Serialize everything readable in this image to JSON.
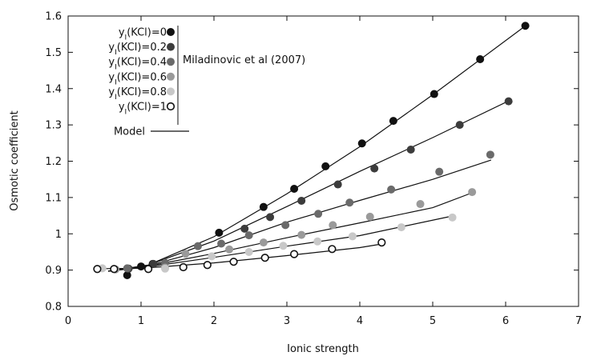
{
  "chart_data": {
    "type": "scatter",
    "xlabel": "Ionic strength",
    "ylabel": "Osmotic coefficient",
    "xlim": [
      0,
      7
    ],
    "ylim": [
      0.8,
      1.6
    ],
    "x_ticks": [
      "0",
      "1",
      "2",
      "3",
      "4",
      "5",
      "6",
      "7"
    ],
    "y_ticks": [
      "0.8",
      "0.9",
      "1",
      "1.1",
      "1.2",
      "1.3",
      "1.4",
      "1.5",
      "1.6"
    ],
    "grid": false,
    "legend_position": "top-left",
    "data_source_label": "Miladinovic et al (2007)",
    "series": [
      {
        "name": "y_I(KCl)=0",
        "color": "#111111",
        "marker": "filled-circle",
        "points": [
          [
            0.81,
            0.886
          ],
          [
            1.0,
            0.91
          ],
          [
            1.16,
            0.917
          ],
          [
            2.07,
            1.003
          ],
          [
            2.68,
            1.074
          ],
          [
            3.1,
            1.124
          ],
          [
            3.53,
            1.186
          ],
          [
            4.03,
            1.249
          ],
          [
            4.46,
            1.311
          ],
          [
            5.02,
            1.385
          ],
          [
            5.65,
            1.481
          ],
          [
            6.27,
            1.573
          ]
        ],
        "model": [
          [
            0.55,
            0.897
          ],
          [
            1.1,
            0.914
          ],
          [
            2.0,
            0.992
          ],
          [
            3.0,
            1.11
          ],
          [
            4.0,
            1.24
          ],
          [
            5.0,
            1.383
          ],
          [
            6.3,
            1.577
          ]
        ]
      },
      {
        "name": "y_I(KCl)=0.2",
        "color": "#3c3c3c",
        "marker": "filled-circle",
        "points": [
          [
            0.83,
            0.904
          ],
          [
            1.17,
            0.917
          ],
          [
            2.42,
            1.014
          ],
          [
            2.77,
            1.046
          ],
          [
            3.2,
            1.091
          ],
          [
            3.7,
            1.136
          ],
          [
            4.2,
            1.18
          ],
          [
            4.7,
            1.232
          ],
          [
            5.37,
            1.3
          ],
          [
            6.04,
            1.365
          ]
        ],
        "model": [
          [
            0.55,
            0.897
          ],
          [
            1.1,
            0.914
          ],
          [
            2.0,
            0.98
          ],
          [
            3.0,
            1.075
          ],
          [
            4.0,
            1.172
          ],
          [
            5.0,
            1.265
          ],
          [
            6.04,
            1.366
          ]
        ]
      },
      {
        "name": "y_I(KCl)=0.4",
        "color": "#6a6a6a",
        "marker": "filled-circle",
        "points": [
          [
            0.81,
            0.905
          ],
          [
            1.33,
            0.92
          ],
          [
            1.78,
            0.966
          ],
          [
            2.1,
            0.973
          ],
          [
            2.48,
            0.996
          ],
          [
            2.98,
            1.024
          ],
          [
            3.43,
            1.055
          ],
          [
            3.86,
            1.086
          ],
          [
            4.43,
            1.122
          ],
          [
            5.09,
            1.171
          ],
          [
            5.79,
            1.218
          ]
        ],
        "model": [
          [
            0.55,
            0.897
          ],
          [
            1.1,
            0.912
          ],
          [
            2.0,
            0.962
          ],
          [
            3.0,
            1.032
          ],
          [
            4.0,
            1.092
          ],
          [
            5.0,
            1.15
          ],
          [
            5.8,
            1.203
          ]
        ]
      },
      {
        "name": "y_I(KCl)=0.6",
        "color": "#9a9a9a",
        "marker": "filled-circle",
        "points": [
          [
            0.65,
            0.902
          ],
          [
            1.33,
            0.907
          ],
          [
            1.61,
            0.945
          ],
          [
            2.21,
            0.957
          ],
          [
            2.68,
            0.976
          ],
          [
            3.2,
            0.997
          ],
          [
            3.63,
            1.024
          ],
          [
            4.14,
            1.047
          ],
          [
            4.83,
            1.082
          ],
          [
            5.54,
            1.115
          ]
        ],
        "model": [
          [
            0.55,
            0.897
          ],
          [
            1.1,
            0.911
          ],
          [
            2.0,
            0.946
          ],
          [
            3.0,
            0.989
          ],
          [
            4.0,
            1.03
          ],
          [
            5.0,
            1.072
          ],
          [
            5.54,
            1.113
          ]
        ]
      },
      {
        "name": "y_I(KCl)=0.8",
        "color": "#c8c8c8",
        "marker": "filled-circle",
        "points": [
          [
            0.47,
            0.905
          ],
          [
            1.33,
            0.904
          ],
          [
            1.97,
            0.938
          ],
          [
            2.48,
            0.95
          ],
          [
            2.95,
            0.967
          ],
          [
            3.42,
            0.979
          ],
          [
            3.9,
            0.993
          ],
          [
            4.57,
            1.018
          ],
          [
            5.27,
            1.045
          ]
        ],
        "model": [
          [
            0.55,
            0.897
          ],
          [
            1.1,
            0.909
          ],
          [
            2.0,
            0.935
          ],
          [
            3.0,
            0.966
          ],
          [
            4.0,
            0.995
          ],
          [
            5.27,
            1.049
          ]
        ]
      },
      {
        "name": "y_I(KCl)=1",
        "color": "#111111",
        "marker": "open-circle",
        "points": [
          [
            0.4,
            0.903
          ],
          [
            0.63,
            0.903
          ],
          [
            1.1,
            0.903
          ],
          [
            1.58,
            0.908
          ],
          [
            1.91,
            0.914
          ],
          [
            2.27,
            0.923
          ],
          [
            2.7,
            0.934
          ],
          [
            3.1,
            0.944
          ],
          [
            3.62,
            0.958
          ],
          [
            4.3,
            0.976
          ]
        ],
        "model": [
          [
            0.45,
            0.904
          ],
          [
            1.0,
            0.905
          ],
          [
            2.0,
            0.92
          ],
          [
            3.0,
            0.94
          ],
          [
            4.0,
            0.962
          ],
          [
            4.3,
            0.972
          ]
        ]
      }
    ],
    "model_label": "Model"
  }
}
